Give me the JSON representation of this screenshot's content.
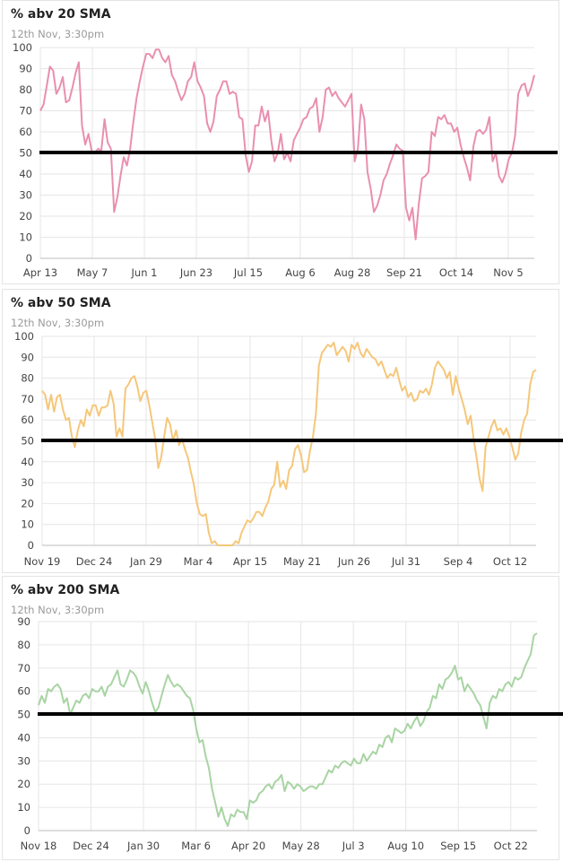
{
  "chart_data": [
    {
      "type": "line",
      "title": "% abv 20 SMA",
      "subtitle": "12th Nov, 3:30pm",
      "ylim": [
        0,
        100
      ],
      "yticks": [
        0,
        10,
        20,
        30,
        40,
        50,
        60,
        70,
        80,
        90,
        100
      ],
      "xticks": [
        "Apr 13",
        "May 7",
        "Jun 1",
        "Jun 23",
        "Jul 15",
        "Aug 6",
        "Aug 28",
        "Sep 21",
        "Oct 14",
        "Nov 5"
      ],
      "reference_line": 50,
      "grid": true,
      "series": [
        {
          "color": "#e98fb0",
          "values": [
            70,
            73,
            82,
            91,
            89,
            78,
            81,
            86,
            74,
            75,
            81,
            88,
            93,
            63,
            54,
            59,
            51,
            50,
            52,
            51,
            66,
            55,
            52,
            22,
            29,
            39,
            48,
            44,
            52,
            65,
            76,
            84,
            91,
            97,
            97,
            95,
            99,
            99,
            95,
            93,
            96,
            87,
            84,
            79,
            75,
            78,
            84,
            86,
            93,
            84,
            81,
            77,
            64,
            60,
            65,
            77,
            80,
            84,
            84,
            78,
            79,
            78,
            67,
            66,
            49,
            41,
            46,
            63,
            63,
            72,
            65,
            70,
            56,
            46,
            50,
            59,
            47,
            50,
            46,
            56,
            59,
            62,
            66,
            67,
            71,
            72,
            76,
            60,
            67,
            80,
            81,
            77,
            79,
            76,
            74,
            72,
            75,
            78,
            46,
            52,
            73,
            66,
            41,
            33,
            22,
            25,
            30,
            37,
            40,
            45,
            49,
            54,
            52,
            51,
            24,
            18,
            24,
            9,
            26,
            38,
            39,
            41,
            60,
            58,
            67,
            66,
            68,
            64,
            64,
            60,
            62,
            54,
            48,
            43,
            37,
            53,
            60,
            61,
            59,
            61,
            67,
            46,
            50,
            39,
            36,
            40,
            47,
            50,
            58,
            78,
            82,
            83,
            77,
            81,
            87
          ]
        }
      ]
    },
    {
      "type": "line",
      "title": "% abv 50 SMA",
      "subtitle": "12th Nov, 3:30pm",
      "ylim": [
        0,
        100
      ],
      "yticks": [
        0,
        10,
        20,
        30,
        40,
        50,
        60,
        70,
        80,
        90,
        100
      ],
      "xticks": [
        "Nov 19",
        "Dec 24",
        "Jan 29",
        "Mar 4",
        "Apr 15",
        "May 21",
        "Jun 26",
        "Jul 31",
        "Sep 4",
        "Oct 12"
      ],
      "reference_line": 50,
      "grid": true,
      "series": [
        {
          "color": "#f5c77a",
          "values": [
            74,
            72,
            65,
            72,
            64,
            71,
            72,
            65,
            60,
            61,
            52,
            47,
            55,
            60,
            57,
            65,
            62,
            67,
            67,
            62,
            66,
            66,
            67,
            74,
            68,
            52,
            56,
            52,
            75,
            77,
            80,
            81,
            76,
            69,
            73,
            74,
            67,
            59,
            51,
            37,
            42,
            52,
            61,
            58,
            50,
            55,
            48,
            51,
            46,
            42,
            35,
            29,
            20,
            15,
            14,
            15,
            6,
            1,
            2,
            0,
            0,
            0,
            0,
            0,
            0,
            2,
            1,
            6,
            9,
            12,
            11,
            13,
            16,
            16,
            14,
            18,
            21,
            27,
            29,
            40,
            28,
            31,
            27,
            36,
            38,
            46,
            48,
            43,
            35,
            36,
            45,
            52,
            63,
            86,
            92,
            94,
            96,
            95,
            97,
            91,
            93,
            95,
            93,
            88,
            96,
            94,
            97,
            92,
            90,
            94,
            92,
            90,
            89,
            86,
            88,
            84,
            80,
            82,
            81,
            85,
            79,
            74,
            76,
            71,
            73,
            69,
            70,
            74,
            73,
            75,
            72,
            77,
            85,
            88,
            86,
            84,
            80,
            83,
            72,
            81,
            75,
            70,
            65,
            58,
            62,
            51,
            42,
            32,
            26,
            47,
            52,
            57,
            60,
            55,
            56,
            53,
            56,
            52,
            47,
            41,
            44,
            54,
            60,
            63,
            77,
            83,
            84
          ]
        }
      ]
    },
    {
      "type": "line",
      "title": "% abv 200 SMA",
      "subtitle": "12th Nov, 3:30pm",
      "ylim": [
        0,
        90
      ],
      "yticks": [
        0,
        10,
        20,
        30,
        40,
        50,
        60,
        70,
        80,
        90
      ],
      "xticks": [
        "Nov 18",
        "Dec 24",
        "Jan 30",
        "Mar 6",
        "Apr 20",
        "May 28",
        "Jul 3",
        "Aug 10",
        "Sep 15",
        "Oct 22"
      ],
      "reference_line": 50,
      "grid": true,
      "series": [
        {
          "color": "#a8d4a3",
          "values": [
            54,
            58,
            55,
            61,
            60,
            62,
            63,
            61,
            55,
            57,
            50,
            53,
            56,
            55,
            58,
            59,
            57,
            61,
            60,
            60,
            62,
            58,
            62,
            63,
            66,
            69,
            63,
            62,
            65,
            69,
            68,
            66,
            62,
            59,
            64,
            60,
            55,
            51,
            53,
            58,
            63,
            67,
            64,
            62,
            63,
            62,
            60,
            58,
            57,
            52,
            44,
            38,
            39,
            32,
            27,
            18,
            12,
            6,
            10,
            5,
            2,
            7,
            6,
            9,
            8,
            8,
            5,
            13,
            12,
            13,
            16,
            17,
            19,
            20,
            18,
            21,
            22,
            24,
            17,
            21,
            20,
            18,
            20,
            19,
            17,
            18,
            19,
            19,
            18,
            20,
            20,
            23,
            26,
            25,
            28,
            27,
            29,
            30,
            29,
            28,
            31,
            29,
            29,
            33,
            30,
            32,
            34,
            33,
            37,
            36,
            40,
            41,
            38,
            44,
            43,
            42,
            43,
            46,
            44,
            47,
            49,
            45,
            47,
            51,
            53,
            58,
            57,
            63,
            61,
            65,
            66,
            68,
            71,
            65,
            66,
            60,
            63,
            61,
            59,
            56,
            54,
            49,
            44,
            55,
            58,
            57,
            61,
            60,
            63,
            64,
            62,
            66,
            65,
            66,
            70,
            73,
            76,
            84,
            85
          ]
        }
      ]
    }
  ]
}
